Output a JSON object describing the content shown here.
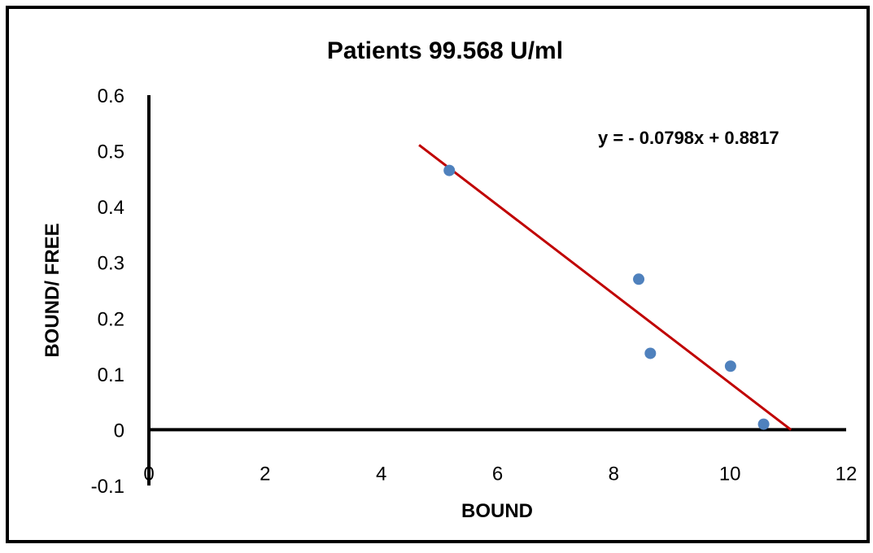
{
  "chart_data": {
    "type": "scatter",
    "title": "Patients 99.568 U/ml",
    "xlabel": "BOUND",
    "ylabel": "BOUND/ FREE",
    "xlim": [
      0,
      12
    ],
    "ylim": [
      -0.1,
      0.6
    ],
    "x_ticks": [
      "0",
      "2",
      "4",
      "6",
      "8",
      "10",
      "12"
    ],
    "y_ticks": [
      "-0.1",
      "0",
      "0.1",
      "0.2",
      "0.3",
      "0.4",
      "0.5",
      "0.6"
    ],
    "grid": false,
    "legend": "none",
    "series": [
      {
        "points": [
          {
            "x": 5.17,
            "y": 0.465
          },
          {
            "x": 8.43,
            "y": 0.27
          },
          {
            "x": 8.63,
            "y": 0.137
          },
          {
            "x": 10.01,
            "y": 0.114
          },
          {
            "x": 10.58,
            "y": 0.01
          }
        ],
        "color": "#4f81bd"
      }
    ],
    "trendline": {
      "type": "linear",
      "slope": -0.0798,
      "intercept": 0.8817,
      "x_range": [
        4.65,
        11.05
      ],
      "color": "#c00000",
      "equation_label": "y = - 0.0798x + 0.8817"
    }
  }
}
